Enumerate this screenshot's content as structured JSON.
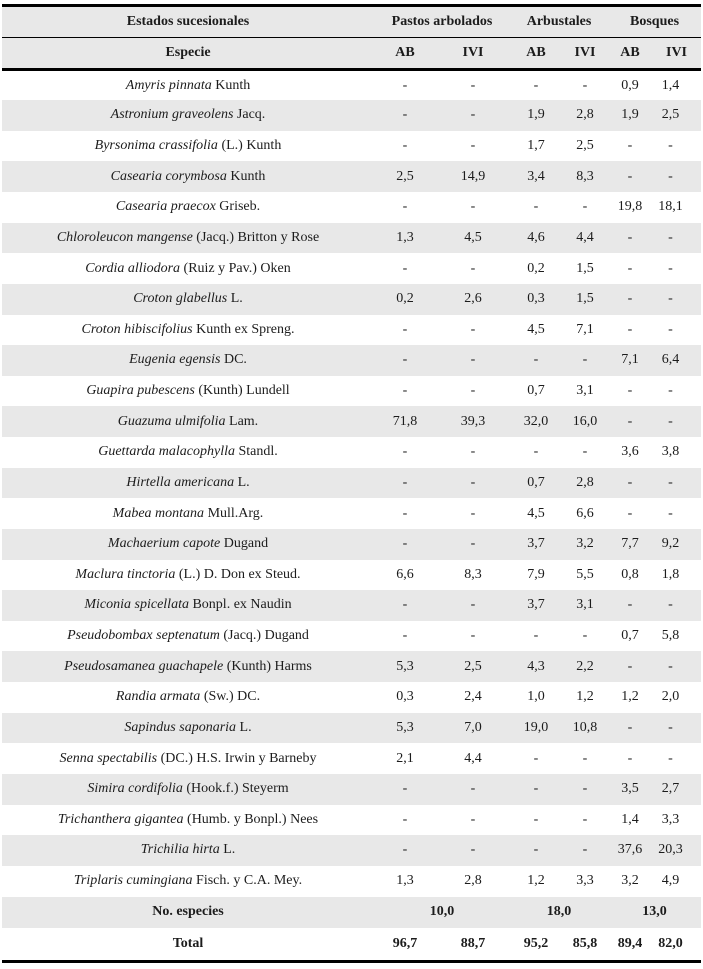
{
  "table": {
    "header": {
      "group_label": "Estados sucesionales",
      "groups": [
        "Pastos arbolados",
        "Arbustales",
        "Bosques"
      ],
      "species_label": "Especie",
      "col_labels": [
        "AB",
        "IVI",
        "AB",
        "IVI",
        "AB",
        "IVI"
      ]
    },
    "species": [
      {
        "name": "Amyris pinnata",
        "author": "Kunth",
        "values": [
          "-",
          "-",
          "-",
          "-",
          "0,9",
          "1,4"
        ]
      },
      {
        "name": "Astronium graveolens",
        "author": "Jacq.",
        "values": [
          "-",
          "-",
          "1,9",
          "2,8",
          "1,9",
          "2,5"
        ]
      },
      {
        "name": "Byrsonima crassifolia",
        "author": "(L.) Kunth",
        "values": [
          "-",
          "-",
          "1,7",
          "2,5",
          "-",
          "-"
        ]
      },
      {
        "name": "Casearia corymbosa",
        "author": "Kunth",
        "values": [
          "2,5",
          "14,9",
          "3,4",
          "8,3",
          "-",
          "-"
        ]
      },
      {
        "name": "Casearia praecox",
        "author": "Griseb.",
        "values": [
          "-",
          "-",
          "-",
          "-",
          "19,8",
          "18,1"
        ]
      },
      {
        "name": "Chloroleucon mangense",
        "author": "(Jacq.) Britton y Rose",
        "values": [
          "1,3",
          "4,5",
          "4,6",
          "4,4",
          "-",
          "-"
        ]
      },
      {
        "name": "Cordia alliodora",
        "author": "(Ruiz y Pav.) Oken",
        "values": [
          "-",
          "-",
          "0,2",
          "1,5",
          "-",
          "-"
        ]
      },
      {
        "name": "Croton glabellus",
        "author": "L.",
        "values": [
          "0,2",
          "2,6",
          "0,3",
          "1,5",
          "-",
          "-"
        ]
      },
      {
        "name": "Croton hibiscifolius",
        "author": "Kunth ex Spreng.",
        "values": [
          "-",
          "-",
          "4,5",
          "7,1",
          "-",
          "-"
        ]
      },
      {
        "name": "Eugenia egensis",
        "author": "DC.",
        "values": [
          "-",
          "-",
          "-",
          "-",
          "7,1",
          "6,4"
        ]
      },
      {
        "name": "Guapira pubescens",
        "author": "(Kunth) Lundell",
        "values": [
          "-",
          "-",
          "0,7",
          "3,1",
          "-",
          "-"
        ]
      },
      {
        "name": "Guazuma ulmifolia",
        "author": "Lam.",
        "values": [
          "71,8",
          "39,3",
          "32,0",
          "16,0",
          "-",
          "-"
        ]
      },
      {
        "name": "Guettarda malacophylla",
        "author": "Standl.",
        "values": [
          "-",
          "-",
          "-",
          "-",
          "3,6",
          "3,8"
        ]
      },
      {
        "name": "Hirtella americana",
        "author": "L.",
        "values": [
          "-",
          "-",
          "0,7",
          "2,8",
          "-",
          "-"
        ]
      },
      {
        "name": "Mabea montana",
        "author": "Mull.Arg.",
        "values": [
          "-",
          "-",
          "4,5",
          "6,6",
          "-",
          "-"
        ]
      },
      {
        "name": "Machaerium capote",
        "author": "Dugand",
        "values": [
          "-",
          "-",
          "3,7",
          "3,2",
          "7,7",
          "9,2"
        ]
      },
      {
        "name": "Maclura tinctoria",
        "author": "(L.) D. Don ex Steud.",
        "values": [
          "6,6",
          "8,3",
          "7,9",
          "5,5",
          "0,8",
          "1,8"
        ]
      },
      {
        "name": "Miconia spicellata",
        "author": "Bonpl. ex Naudin",
        "values": [
          "-",
          "-",
          "3,7",
          "3,1",
          "-",
          "-"
        ]
      },
      {
        "name": "Pseudobombax septenatum",
        "author": "(Jacq.) Dugand",
        "values": [
          "-",
          "-",
          "-",
          "-",
          "0,7",
          "5,8"
        ]
      },
      {
        "name": "Pseudosamanea guachapele",
        "author": "(Kunth) Harms",
        "values": [
          "5,3",
          "2,5",
          "4,3",
          "2,2",
          "-",
          "-"
        ]
      },
      {
        "name": "Randia armata",
        "author": "(Sw.) DC.",
        "values": [
          "0,3",
          "2,4",
          "1,0",
          "1,2",
          "1,2",
          "2,0"
        ]
      },
      {
        "name": "Sapindus saponaria",
        "author": "L.",
        "values": [
          "5,3",
          "7,0",
          "19,0",
          "10,8",
          "-",
          "-"
        ]
      },
      {
        "name": "Senna spectabilis",
        "author": "(DC.) H.S. Irwin y Barneby",
        "values": [
          "2,1",
          "4,4",
          "-",
          "-",
          "-",
          "-"
        ]
      },
      {
        "name": "Simira cordifolia",
        "author": "(Hook.f.) Steyerm",
        "values": [
          "-",
          "-",
          "-",
          "-",
          "3,5",
          "2,7"
        ]
      },
      {
        "name": "Trichanthera gigantea",
        "author": "(Humb. y Bonpl.) Nees",
        "values": [
          "-",
          "-",
          "-",
          "-",
          "1,4",
          "3,3"
        ]
      },
      {
        "name": "Trichilia hirta",
        "author": "L.",
        "values": [
          "-",
          "-",
          "-",
          "-",
          "37,6",
          "20,3"
        ]
      },
      {
        "name": "Triplaris cumingiana",
        "author": "Fisch. y C.A. Mey.",
        "values": [
          "1,3",
          "2,8",
          "1,2",
          "3,3",
          "3,2",
          "4,9"
        ]
      }
    ],
    "footer": {
      "num_species_label": "No. especies",
      "num_species_values": [
        "10,0",
        "18,0",
        "13,0"
      ],
      "total_label": "Total",
      "total_values": [
        "96,7",
        "88,7",
        "95,2",
        "85,8",
        "89,4",
        "82,0"
      ]
    },
    "colors": {
      "stripe": "#e8e8e8",
      "border": "#000000",
      "text": "#1c1c1c"
    }
  }
}
